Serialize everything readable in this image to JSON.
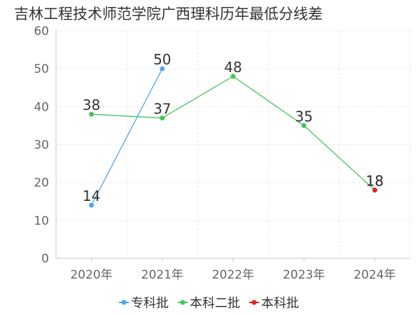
{
  "chart_data": {
    "type": "line",
    "title": "吉林工程技术师范学院广西理科历年最低分线差",
    "categories": [
      "2020年",
      "2021年",
      "2022年",
      "2023年",
      "2024年"
    ],
    "ylim": [
      0,
      60
    ],
    "yticks": [
      0,
      10,
      20,
      30,
      40,
      50,
      60
    ],
    "grid": true,
    "legend_position": "bottom-center",
    "series": [
      {
        "name": "专科批",
        "color": "#4da6f0",
        "values": [
          14,
          50,
          null,
          null,
          null
        ]
      },
      {
        "name": "本科二批",
        "color": "#45c45a",
        "values": [
          38,
          37,
          48,
          35,
          18
        ]
      },
      {
        "name": "本科批",
        "color": "#e02424",
        "values": [
          null,
          null,
          null,
          null,
          18
        ]
      }
    ]
  }
}
